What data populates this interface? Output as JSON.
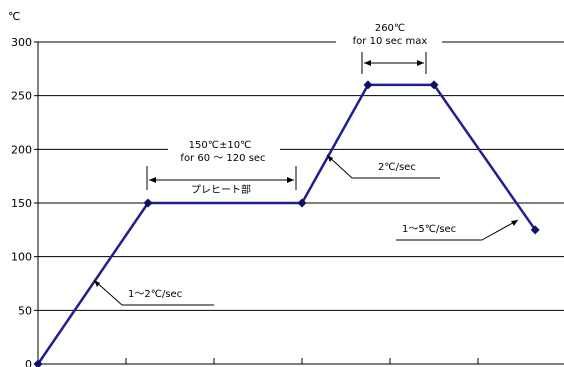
{
  "chart_data": {
    "type": "line",
    "ylabel": "℃",
    "ylim": [
      0,
      300
    ],
    "yticks": [
      "0",
      "50",
      "100",
      "150",
      "200",
      "250",
      "300"
    ],
    "grid": true,
    "series": [
      {
        "values": [
          [
            0,
            0
          ],
          [
            1.25,
            150
          ],
          [
            3.0,
            150
          ],
          [
            3.75,
            260
          ],
          [
            4.5,
            260
          ],
          [
            5.65,
            125
          ]
        ]
      }
    ],
    "annotations": {
      "peak": "260℃",
      "peak_sub": "for 10 sec max",
      "preheat": "150℃±10℃",
      "preheat_sub": "for 60 ～ 120 sec",
      "preheat_label": "プレヒート部",
      "ramp1": "1～2℃/sec",
      "ramp2": "2℃/sec",
      "cool": "1～5℃/sec"
    },
    "color": "#1f1f8f"
  }
}
